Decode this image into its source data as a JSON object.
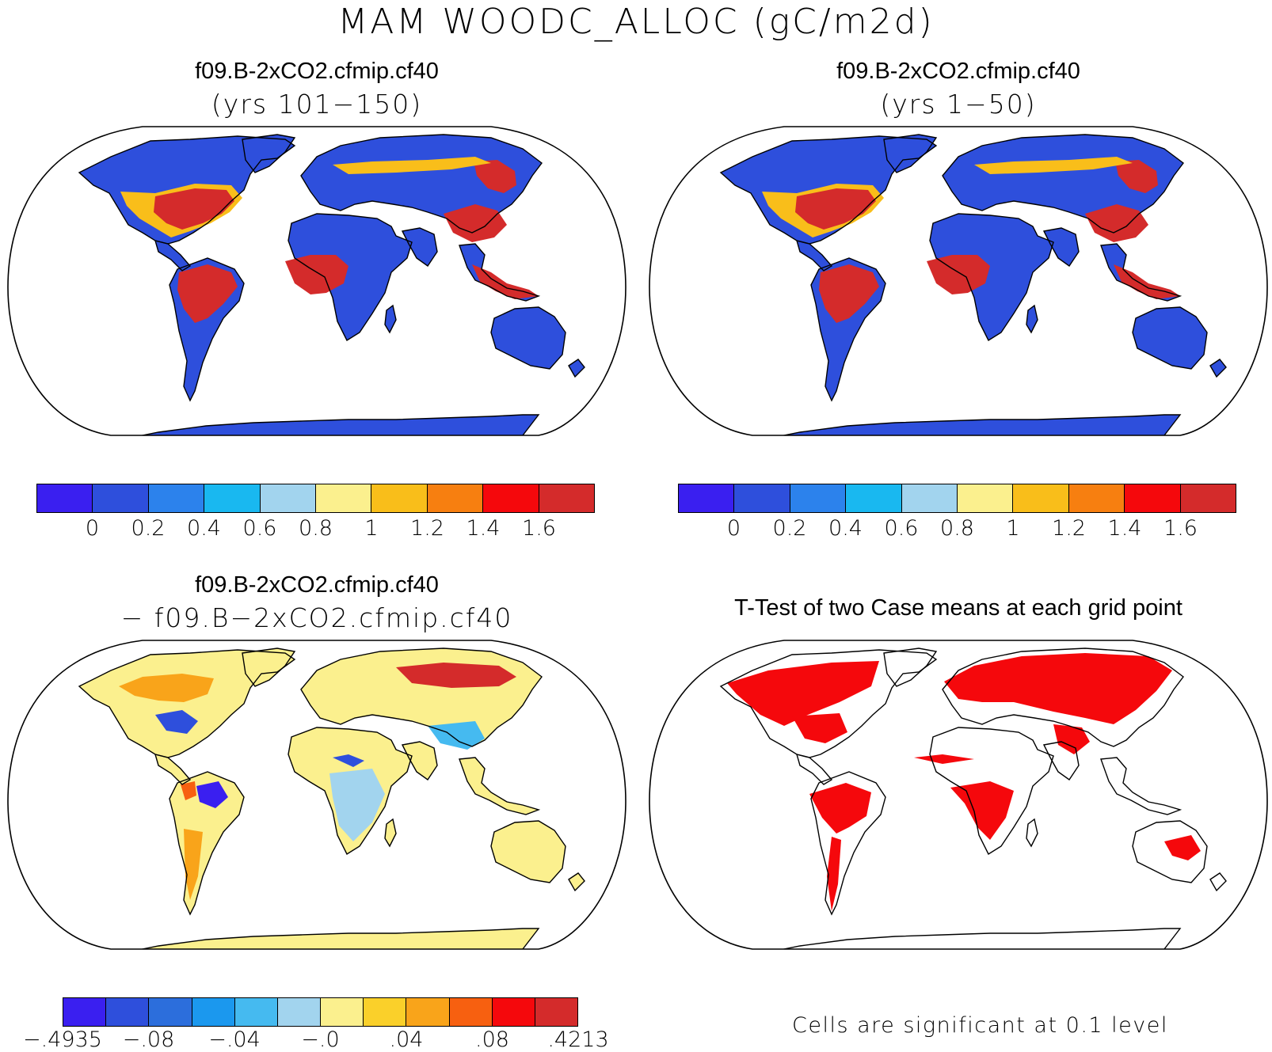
{
  "title": "MAM WOODC_ALLOC (gC/m2d)",
  "panels": {
    "top_left": {
      "title": "f09.B-2xCO2.cfmip.cf40",
      "subtitle": "(yrs 101−150)"
    },
    "top_right": {
      "title": "f09.B-2xCO2.cfmip.cf40",
      "subtitle": "(yrs 1−50)"
    },
    "bottom_left": {
      "title": "f09.B-2xCO2.cfmip.cf40",
      "subtitle": "− f09.B−2xCO2.cfmip.cf40"
    },
    "bottom_right": {
      "title": "T-Test of two Case means at each grid point",
      "footnote": "Cells are significant at 0.1 level"
    }
  },
  "colorbars": {
    "main": {
      "colors": [
        "#3a1ff0",
        "#2e4fdc",
        "#2c82ec",
        "#19b8f0",
        "#a2d4ee",
        "#fbf08e",
        "#f9be1a",
        "#f77f10",
        "#f5080c",
        "#d42b2b"
      ],
      "labels": [
        "0",
        "0.2",
        "0.4",
        "0.6",
        "0.8",
        "1",
        "1.2",
        "1.4",
        "1.6"
      ]
    },
    "diff": {
      "colors": [
        "#3a1ff0",
        "#2e4fdc",
        "#2c6edc",
        "#1b98ee",
        "#45baf0",
        "#a2d4ee",
        "#fbf08e",
        "#fad02a",
        "#f9a41a",
        "#f76010",
        "#f5080c",
        "#d42b2b"
      ],
      "labels": [
        "−.4935",
        "−.08",
        "−.04",
        "−.0",
        ".04",
        ".08",
        ".4213"
      ]
    }
  },
  "legend_colors": {
    "land_base": "#2e4fdc",
    "land_high": "#d42b2b",
    "diff_base": "#fbf08e",
    "significant": "#f5080c"
  }
}
